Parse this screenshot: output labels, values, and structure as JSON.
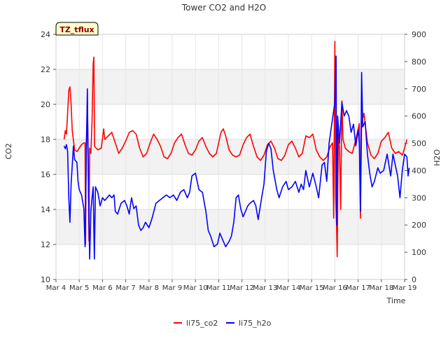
{
  "chart_data": {
    "type": "line",
    "title": "Tower CO2 and H2O",
    "badge": "TZ_tflux",
    "xlabel": "Time",
    "ylabel_left": "CO2",
    "ylabel_right": "H2O",
    "xlim": [
      4,
      19
    ],
    "ylim_left": [
      10,
      24
    ],
    "ylim_right": [
      0,
      900
    ],
    "x_ticks": [
      {
        "v": 4,
        "label": "Mar 4"
      },
      {
        "v": 5,
        "label": "Mar 5"
      },
      {
        "v": 6,
        "label": "Mar 6"
      },
      {
        "v": 7,
        "label": "Mar 7"
      },
      {
        "v": 8,
        "label": "Mar 8"
      },
      {
        "v": 9,
        "label": "Mar 9"
      },
      {
        "v": 10,
        "label": "Mar 10"
      },
      {
        "v": 11,
        "label": "Mar 11"
      },
      {
        "v": 12,
        "label": "Mar 12"
      },
      {
        "v": 13,
        "label": "Mar 13"
      },
      {
        "v": 14,
        "label": "Mar 14"
      },
      {
        "v": 15,
        "label": "Mar 15"
      },
      {
        "v": 16,
        "label": "Mar 16"
      },
      {
        "v": 17,
        "label": "Mar 17"
      },
      {
        "v": 18,
        "label": "Mar 18"
      },
      {
        "v": 19,
        "label": "Mar 19"
      }
    ],
    "y_left_ticks": [
      10,
      12,
      14,
      16,
      18,
      20,
      22,
      24
    ],
    "y_right_ticks": [
      0,
      100,
      200,
      300,
      400,
      500,
      600,
      700,
      800,
      900
    ],
    "grid": true,
    "legend_position": "bottom-center",
    "series": [
      {
        "name": "li75_co2",
        "axis": "left",
        "color": "#ff0000",
        "points": [
          [
            4.35,
            18.0
          ],
          [
            4.4,
            18.5
          ],
          [
            4.45,
            18.3
          ],
          [
            4.5,
            19.5
          ],
          [
            4.55,
            20.8
          ],
          [
            4.6,
            21.0
          ],
          [
            4.65,
            20.0
          ],
          [
            4.7,
            18.5
          ],
          [
            4.8,
            17.4
          ],
          [
            4.9,
            17.3
          ],
          [
            5.0,
            17.5
          ],
          [
            5.1,
            17.7
          ],
          [
            5.2,
            17.8
          ],
          [
            5.25,
            17.8
          ],
          [
            5.27,
            12.0
          ],
          [
            5.3,
            17.8
          ],
          [
            5.35,
            20.0
          ],
          [
            5.38,
            17.5
          ],
          [
            5.42,
            12.2
          ],
          [
            5.45,
            17.5
          ],
          [
            5.5,
            17.2
          ],
          [
            5.55,
            19.0
          ],
          [
            5.6,
            22.3
          ],
          [
            5.63,
            22.7
          ],
          [
            5.66,
            17.6
          ],
          [
            5.8,
            17.4
          ],
          [
            5.95,
            17.5
          ],
          [
            6.05,
            18.6
          ],
          [
            6.1,
            18.0
          ],
          [
            6.25,
            18.2
          ],
          [
            6.4,
            18.4
          ],
          [
            6.55,
            17.8
          ],
          [
            6.7,
            17.2
          ],
          [
            6.85,
            17.5
          ],
          [
            7.0,
            17.9
          ],
          [
            7.15,
            18.4
          ],
          [
            7.3,
            18.5
          ],
          [
            7.45,
            18.3
          ],
          [
            7.6,
            17.5
          ],
          [
            7.75,
            17.0
          ],
          [
            7.9,
            17.2
          ],
          [
            8.05,
            17.8
          ],
          [
            8.2,
            18.3
          ],
          [
            8.35,
            18.0
          ],
          [
            8.5,
            17.6
          ],
          [
            8.65,
            17.0
          ],
          [
            8.8,
            16.9
          ],
          [
            8.95,
            17.2
          ],
          [
            9.1,
            17.8
          ],
          [
            9.25,
            18.1
          ],
          [
            9.4,
            18.3
          ],
          [
            9.55,
            17.7
          ],
          [
            9.7,
            17.2
          ],
          [
            9.85,
            17.1
          ],
          [
            10.0,
            17.4
          ],
          [
            10.15,
            17.9
          ],
          [
            10.3,
            18.1
          ],
          [
            10.45,
            17.6
          ],
          [
            10.6,
            17.2
          ],
          [
            10.75,
            17.0
          ],
          [
            10.9,
            17.2
          ],
          [
            11.0,
            17.8
          ],
          [
            11.1,
            18.4
          ],
          [
            11.2,
            18.6
          ],
          [
            11.3,
            18.2
          ],
          [
            11.45,
            17.4
          ],
          [
            11.6,
            17.1
          ],
          [
            11.75,
            17.0
          ],
          [
            11.9,
            17.1
          ],
          [
            12.05,
            17.7
          ],
          [
            12.2,
            18.1
          ],
          [
            12.35,
            18.3
          ],
          [
            12.5,
            17.6
          ],
          [
            12.65,
            17.0
          ],
          [
            12.8,
            16.8
          ],
          [
            12.95,
            17.1
          ],
          [
            13.1,
            17.7
          ],
          [
            13.25,
            17.9
          ],
          [
            13.4,
            17.5
          ],
          [
            13.55,
            16.9
          ],
          [
            13.7,
            16.8
          ],
          [
            13.85,
            17.1
          ],
          [
            14.0,
            17.7
          ],
          [
            14.15,
            17.9
          ],
          [
            14.3,
            17.5
          ],
          [
            14.45,
            17.0
          ],
          [
            14.6,
            17.2
          ],
          [
            14.75,
            18.2
          ],
          [
            14.9,
            18.1
          ],
          [
            15.05,
            18.3
          ],
          [
            15.2,
            17.4
          ],
          [
            15.35,
            17.0
          ],
          [
            15.5,
            16.8
          ],
          [
            15.65,
            17.0
          ],
          [
            15.8,
            17.6
          ],
          [
            15.9,
            17.8
          ],
          [
            15.95,
            13.5
          ],
          [
            16.0,
            23.6
          ],
          [
            16.03,
            14.8
          ],
          [
            16.07,
            13.2
          ],
          [
            16.1,
            11.3
          ],
          [
            16.15,
            18.3
          ],
          [
            16.2,
            17.5
          ],
          [
            16.25,
            14.0
          ],
          [
            16.3,
            20.2
          ],
          [
            16.35,
            18.0
          ],
          [
            16.45,
            17.5
          ],
          [
            16.6,
            17.3
          ],
          [
            16.75,
            17.2
          ],
          [
            16.9,
            18.0
          ],
          [
            17.05,
            18.9
          ],
          [
            17.1,
            13.5
          ],
          [
            17.15,
            18.9
          ],
          [
            17.25,
            19.5
          ],
          [
            17.4,
            17.8
          ],
          [
            17.55,
            17.1
          ],
          [
            17.7,
            16.9
          ],
          [
            17.85,
            17.2
          ],
          [
            18.0,
            17.9
          ],
          [
            18.15,
            18.1
          ],
          [
            18.3,
            18.4
          ],
          [
            18.45,
            17.5
          ],
          [
            18.6,
            17.2
          ],
          [
            18.75,
            17.3
          ],
          [
            18.9,
            17.1
          ],
          [
            19.0,
            17.5
          ],
          [
            19.1,
            18.0
          ]
        ]
      },
      {
        "name": "li75_h2o",
        "axis": "right",
        "color": "#0000ff",
        "points": [
          [
            4.35,
            490
          ],
          [
            4.4,
            480
          ],
          [
            4.45,
            495
          ],
          [
            4.5,
            470
          ],
          [
            4.55,
            300
          ],
          [
            4.6,
            210
          ],
          [
            4.65,
            350
          ],
          [
            4.75,
            490
          ],
          [
            4.8,
            440
          ],
          [
            4.9,
            430
          ],
          [
            4.95,
            360
          ],
          [
            5.0,
            330
          ],
          [
            5.1,
            310
          ],
          [
            5.2,
            260
          ],
          [
            5.25,
            120
          ],
          [
            5.3,
            430
          ],
          [
            5.35,
            700
          ],
          [
            5.4,
            300
          ],
          [
            5.45,
            75
          ],
          [
            5.5,
            250
          ],
          [
            5.55,
            300
          ],
          [
            5.6,
            340
          ],
          [
            5.65,
            75
          ],
          [
            5.7,
            340
          ],
          [
            5.8,
            320
          ],
          [
            5.9,
            270
          ],
          [
            6.0,
            300
          ],
          [
            6.1,
            290
          ],
          [
            6.2,
            300
          ],
          [
            6.3,
            310
          ],
          [
            6.4,
            300
          ],
          [
            6.5,
            310
          ],
          [
            6.55,
            250
          ],
          [
            6.65,
            240
          ],
          [
            6.8,
            280
          ],
          [
            6.95,
            290
          ],
          [
            7.05,
            270
          ],
          [
            7.15,
            240
          ],
          [
            7.25,
            300
          ],
          [
            7.35,
            260
          ],
          [
            7.45,
            270
          ],
          [
            7.55,
            200
          ],
          [
            7.65,
            180
          ],
          [
            7.75,
            190
          ],
          [
            7.85,
            210
          ],
          [
            8.0,
            190
          ],
          [
            8.15,
            230
          ],
          [
            8.3,
            280
          ],
          [
            8.45,
            290
          ],
          [
            8.6,
            300
          ],
          [
            8.75,
            310
          ],
          [
            8.9,
            300
          ],
          [
            9.05,
            310
          ],
          [
            9.2,
            290
          ],
          [
            9.35,
            320
          ],
          [
            9.5,
            330
          ],
          [
            9.65,
            300
          ],
          [
            9.75,
            320
          ],
          [
            9.85,
            380
          ],
          [
            10.0,
            390
          ],
          [
            10.15,
            330
          ],
          [
            10.3,
            320
          ],
          [
            10.45,
            250
          ],
          [
            10.55,
            180
          ],
          [
            10.65,
            160
          ],
          [
            10.8,
            120
          ],
          [
            10.95,
            130
          ],
          [
            11.05,
            170
          ],
          [
            11.15,
            150
          ],
          [
            11.3,
            120
          ],
          [
            11.45,
            140
          ],
          [
            11.55,
            160
          ],
          [
            11.65,
            210
          ],
          [
            11.75,
            300
          ],
          [
            11.85,
            310
          ],
          [
            11.95,
            260
          ],
          [
            12.05,
            230
          ],
          [
            12.15,
            250
          ],
          [
            12.25,
            270
          ],
          [
            12.35,
            280
          ],
          [
            12.5,
            290
          ],
          [
            12.6,
            270
          ],
          [
            12.7,
            220
          ],
          [
            12.85,
            300
          ],
          [
            12.95,
            350
          ],
          [
            13.05,
            470
          ],
          [
            13.15,
            500
          ],
          [
            13.25,
            480
          ],
          [
            13.35,
            400
          ],
          [
            13.5,
            330
          ],
          [
            13.6,
            300
          ],
          [
            13.75,
            340
          ],
          [
            13.9,
            360
          ],
          [
            14.0,
            330
          ],
          [
            14.15,
            340
          ],
          [
            14.3,
            360
          ],
          [
            14.45,
            320
          ],
          [
            14.55,
            350
          ],
          [
            14.65,
            330
          ],
          [
            14.75,
            400
          ],
          [
            14.9,
            340
          ],
          [
            15.05,
            390
          ],
          [
            15.2,
            340
          ],
          [
            15.3,
            300
          ],
          [
            15.45,
            420
          ],
          [
            15.55,
            430
          ],
          [
            15.65,
            360
          ],
          [
            15.75,
            500
          ],
          [
            15.85,
            560
          ],
          [
            15.95,
            620
          ],
          [
            16.0,
            650
          ],
          [
            16.05,
            820
          ],
          [
            16.08,
            200
          ],
          [
            16.12,
            600
          ],
          [
            16.2,
            500
          ],
          [
            16.3,
            650
          ],
          [
            16.4,
            600
          ],
          [
            16.5,
            620
          ],
          [
            16.6,
            600
          ],
          [
            16.7,
            540
          ],
          [
            16.8,
            570
          ],
          [
            16.9,
            490
          ],
          [
            17.0,
            550
          ],
          [
            17.05,
            500
          ],
          [
            17.1,
            250
          ],
          [
            17.15,
            760
          ],
          [
            17.2,
            560
          ],
          [
            17.3,
            580
          ],
          [
            17.4,
            460
          ],
          [
            17.5,
            390
          ],
          [
            17.6,
            340
          ],
          [
            17.7,
            360
          ],
          [
            17.85,
            410
          ],
          [
            17.95,
            390
          ],
          [
            18.1,
            400
          ],
          [
            18.25,
            460
          ],
          [
            18.4,
            380
          ],
          [
            18.5,
            460
          ],
          [
            18.6,
            420
          ],
          [
            18.7,
            380
          ],
          [
            18.8,
            300
          ],
          [
            18.9,
            400
          ],
          [
            19.0,
            460
          ],
          [
            19.1,
            450
          ],
          [
            19.15,
            380
          ],
          [
            19.2,
            410
          ]
        ]
      }
    ]
  }
}
